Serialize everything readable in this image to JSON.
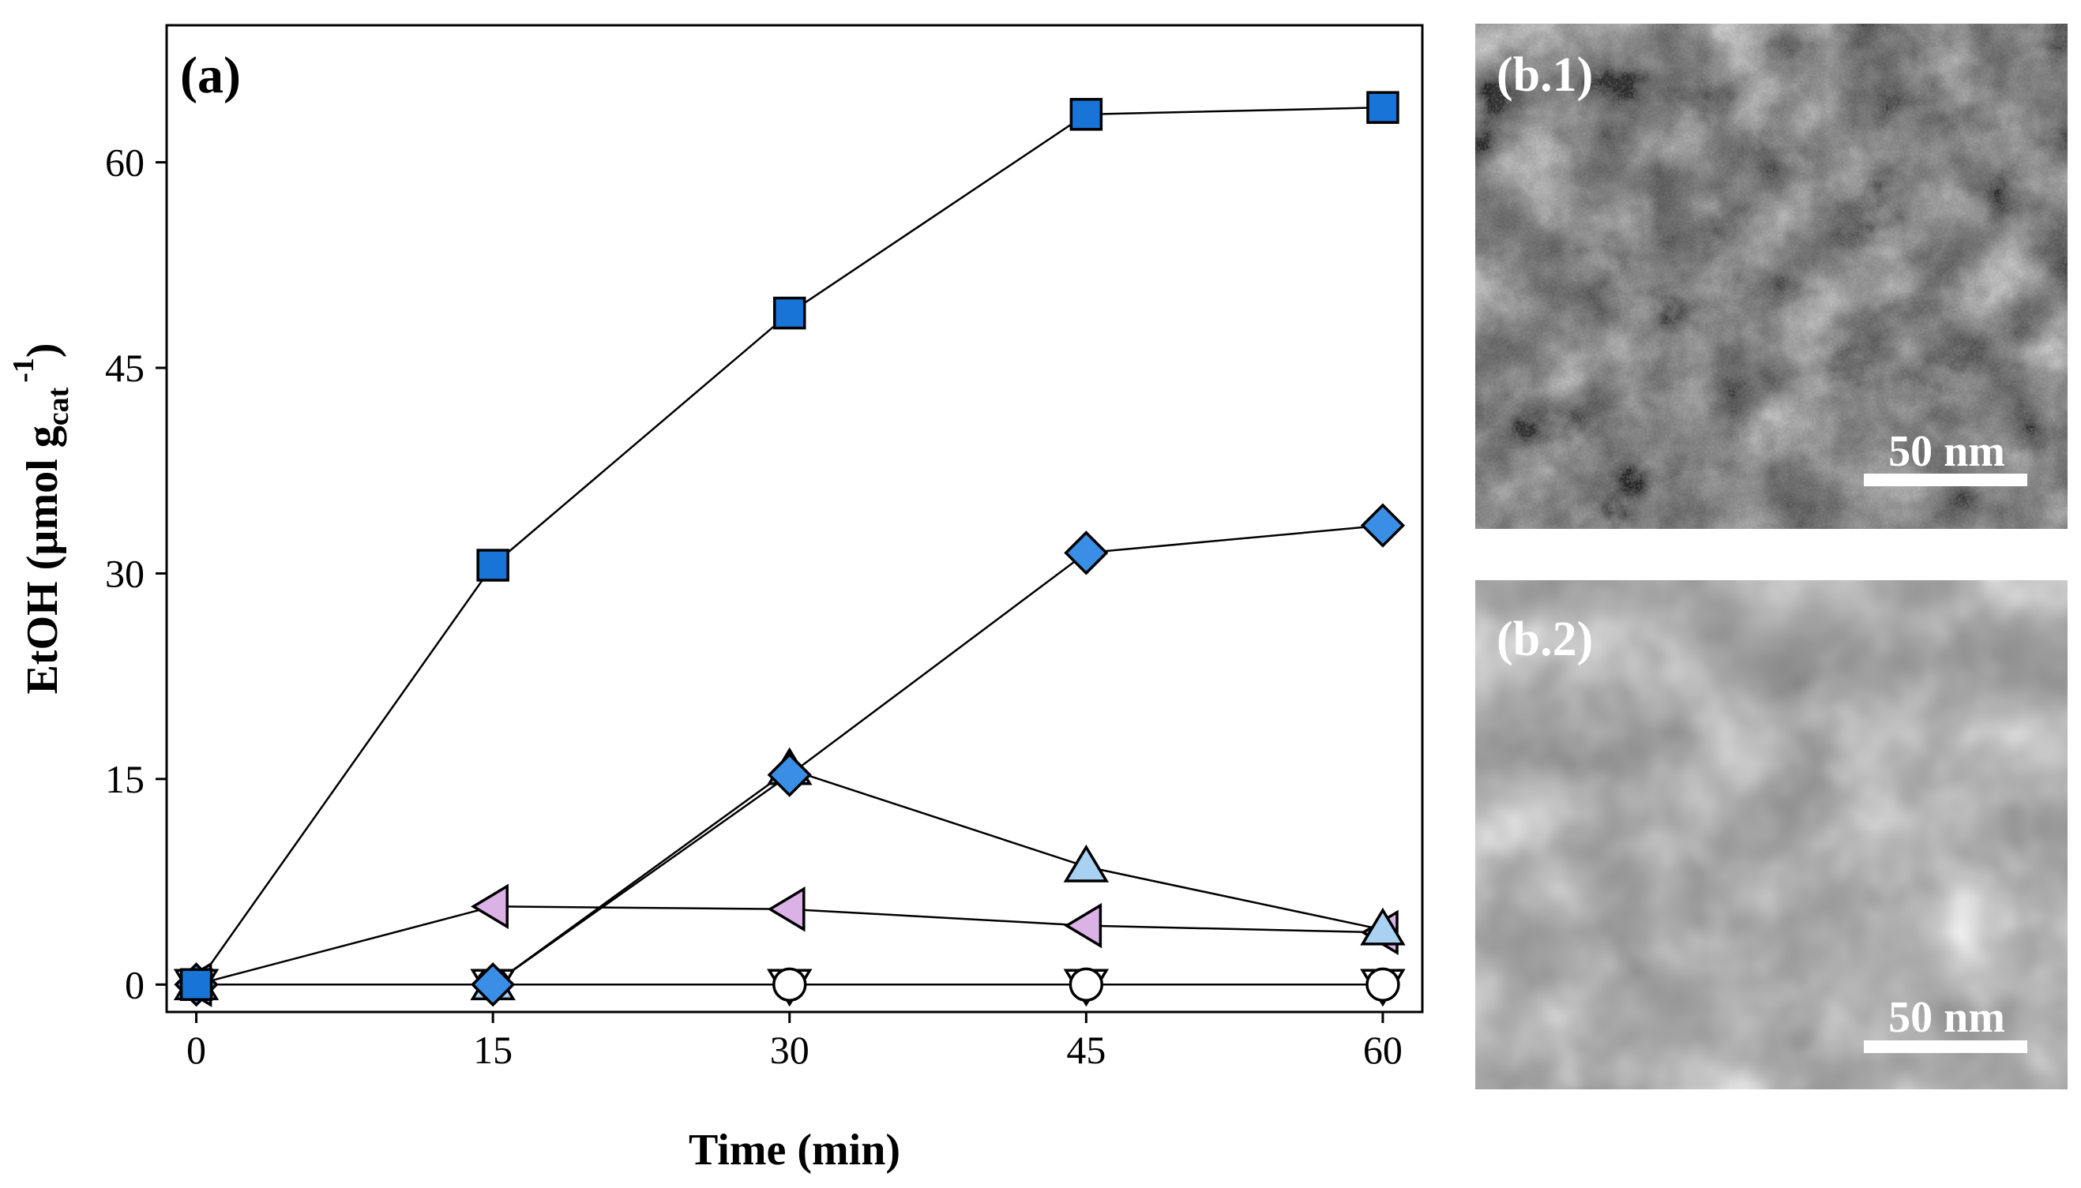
{
  "panels": {
    "a_label": "(a)",
    "b1_label": "(b.1)",
    "b2_label": "(b.2)",
    "scale_bar_b1": "50 nm",
    "scale_bar_b2": "50 nm"
  },
  "chart_data": {
    "type": "line",
    "title": "",
    "xlabel": "Time (min)",
    "ylabel": {
      "main": "EtOH (µmol g",
      "sub": "cat",
      "sup": "-1",
      "close": ")"
    },
    "x": [
      0,
      15,
      30,
      45,
      60
    ],
    "xticks": [
      0,
      15,
      30,
      45,
      60
    ],
    "yticks": [
      0,
      15,
      30,
      45,
      60
    ],
    "xlim": [
      -1.5,
      62
    ],
    "ylim": [
      -2,
      70
    ],
    "grid": false,
    "series": [
      {
        "marker": "square",
        "color": "#1874d6",
        "values": [
          0,
          30.6,
          49,
          63.5,
          64
        ]
      },
      {
        "marker": "diamond",
        "color": "#3a8ee6",
        "values": [
          0,
          0,
          15.3,
          31.5,
          33.5
        ]
      },
      {
        "marker": "triangle-up",
        "color": "#a9d1f2",
        "values": [
          0,
          0,
          15.7,
          8.6,
          4.0
        ]
      },
      {
        "marker": "triangle-left",
        "color": "#dbb2e6",
        "values": [
          0,
          5.7,
          5.5,
          4.3,
          3.8
        ]
      },
      {
        "marker": "circle",
        "color": "#ffffff",
        "values": [
          0,
          0,
          0,
          0,
          0
        ]
      },
      {
        "marker": "triangle-down",
        "color": "#ffffff",
        "values": [
          0,
          0,
          0,
          0,
          0
        ]
      }
    ]
  },
  "colors": {
    "sem_b1_base": "#4d4d4d",
    "sem_b2_base": "#8a8a8a",
    "label_text": "#ffffff",
    "line": "#000000"
  }
}
